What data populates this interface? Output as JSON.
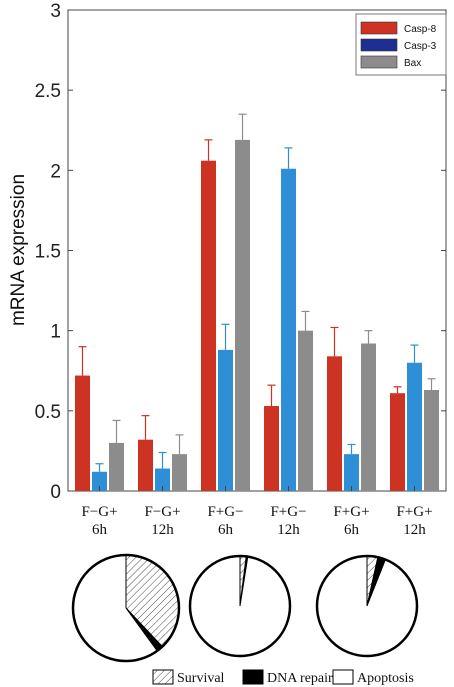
{
  "chart_data": [
    {
      "type": "bar",
      "ylabel": "mRNA expression",
      "xlabel": "",
      "ylim": [
        0,
        3
      ],
      "yticks": [
        "0",
        "0.5",
        "1",
        "1.5",
        "2",
        "2.5",
        "3"
      ],
      "categories": [
        {
          "line1": "F−G+",
          "line2": "6h"
        },
        {
          "line1": "F−G+",
          "line2": "12h"
        },
        {
          "line1": "F+G−",
          "line2": "6h"
        },
        {
          "line1": "F+G−",
          "line2": "12h"
        },
        {
          "line1": "F+G+",
          "line2": "6h"
        },
        {
          "line1": "F+G+",
          "line2": "12h"
        }
      ],
      "series": [
        {
          "name": "Casp-8",
          "color": "#cc3322",
          "values": [
            0.72,
            0.32,
            2.06,
            0.53,
            0.84,
            0.61
          ],
          "errors": [
            0.18,
            0.15,
            0.13,
            0.13,
            0.18,
            0.04
          ]
        },
        {
          "name": "Casp-3",
          "color": "#2f8fd6",
          "legend_color": "#1f2f8f",
          "values": [
            0.12,
            0.14,
            0.88,
            2.01,
            0.23,
            0.8
          ],
          "errors": [
            0.05,
            0.1,
            0.16,
            0.13,
            0.06,
            0.11
          ]
        },
        {
          "name": "Bax",
          "color": "#8c8c8c",
          "values": [
            0.3,
            0.23,
            2.19,
            1.0,
            0.92,
            0.63
          ],
          "errors": [
            0.14,
            0.12,
            0.16,
            0.12,
            0.08,
            0.07
          ]
        }
      ],
      "legend_position": "top-right",
      "grid": false
    },
    {
      "type": "pie",
      "categories": [
        "Survival",
        "DNA repair",
        "Apoptosis"
      ],
      "legend_position": "bottom",
      "pies": [
        {
          "values": [
            38,
            2,
            60
          ]
        },
        {
          "values": [
            2,
            0.5,
            97.5
          ]
        },
        {
          "values": [
            3.5,
            2.5,
            94
          ]
        }
      ]
    }
  ]
}
